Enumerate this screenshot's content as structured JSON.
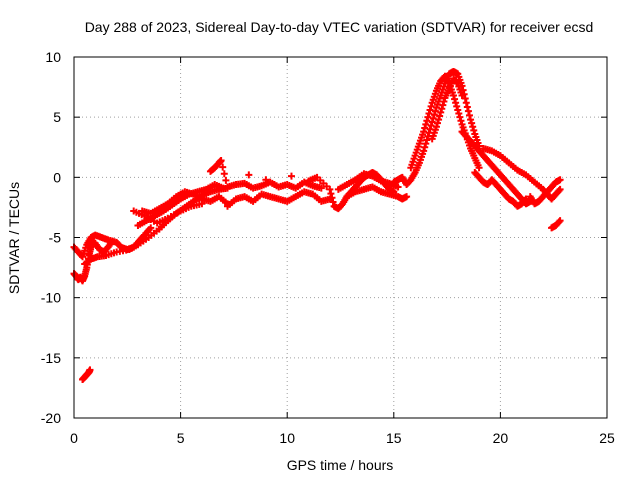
{
  "chart_data": {
    "type": "scatter",
    "title": "Day 288 of 2023, Sidereal Day-to-day VTEC variation (SDTVAR) for receiver ecsd",
    "xlabel": "GPS time / hours",
    "ylabel": "SDTVAR / TECUs",
    "xlim": [
      0,
      25
    ],
    "ylim": [
      -20,
      10
    ],
    "xticks": [
      "0",
      "5",
      "10",
      "15",
      "20",
      "25"
    ],
    "yticks": [
      "-20",
      "-15",
      "-10",
      "-5",
      "0",
      "5",
      "10"
    ],
    "grid": true,
    "marker": "plus",
    "series": [
      {
        "name": "SDTVAR",
        "color": "#ff0000",
        "points": [
          [
            0.0,
            -8.0
          ],
          [
            0.1,
            -8.2
          ],
          [
            0.2,
            -8.5
          ],
          [
            0.3,
            -8.3
          ],
          [
            0.4,
            -8.6
          ],
          [
            0.5,
            -8.2
          ],
          [
            0.6,
            -7.5
          ],
          [
            0.7,
            -6.5
          ],
          [
            0.8,
            -5.8
          ],
          [
            0.9,
            -5.4
          ],
          [
            1.0,
            -5.5
          ],
          [
            1.2,
            -6.0
          ],
          [
            1.4,
            -6.2
          ],
          [
            1.6,
            -5.8
          ],
          [
            1.8,
            -5.3
          ],
          [
            0.0,
            -5.8
          ],
          [
            0.2,
            -6.2
          ],
          [
            0.4,
            -6.6
          ],
          [
            0.6,
            -5.6
          ],
          [
            0.8,
            -5.0
          ],
          [
            1.0,
            -4.8
          ],
          [
            1.3,
            -5.0
          ],
          [
            1.6,
            -5.2
          ],
          [
            2.0,
            -5.4
          ],
          [
            2.2,
            -5.8
          ],
          [
            2.5,
            -6.0
          ],
          [
            2.8,
            -5.8
          ],
          [
            3.1,
            -5.2
          ],
          [
            3.3,
            -4.8
          ],
          [
            3.6,
            -4.2
          ],
          [
            0.5,
            -7.2
          ],
          [
            0.8,
            -6.8
          ],
          [
            1.1,
            -6.6
          ],
          [
            1.5,
            -6.5
          ],
          [
            2.0,
            -6.2
          ],
          [
            2.6,
            -6.0
          ],
          [
            3.0,
            -5.6
          ],
          [
            3.5,
            -5.0
          ],
          [
            4.0,
            -4.3
          ],
          [
            4.4,
            -3.6
          ],
          [
            4.8,
            -3.0
          ],
          [
            5.2,
            -2.5
          ],
          [
            5.6,
            -2.0
          ],
          [
            6.0,
            -1.5
          ],
          [
            6.4,
            -1.2
          ],
          [
            6.8,
            -1.0
          ],
          [
            7.2,
            -0.9
          ],
          [
            3.0,
            -4.0
          ],
          [
            3.4,
            -3.6
          ],
          [
            3.8,
            -3.2
          ],
          [
            4.2,
            -2.8
          ],
          [
            4.6,
            -2.3
          ],
          [
            5.0,
            -1.8
          ],
          [
            5.4,
            -1.4
          ],
          [
            5.8,
            -1.2
          ],
          [
            6.2,
            -1.0
          ],
          [
            6.6,
            -0.6
          ],
          [
            7.0,
            -0.9
          ],
          [
            3.2,
            -2.8
          ],
          [
            3.6,
            -3.0
          ],
          [
            4.0,
            -2.6
          ],
          [
            4.4,
            -2.2
          ],
          [
            4.8,
            -1.6
          ],
          [
            5.2,
            -1.2
          ],
          [
            5.6,
            -1.4
          ],
          [
            6.0,
            -1.8
          ],
          [
            6.4,
            -2.0
          ],
          [
            6.8,
            -1.6
          ],
          [
            7.2,
            -2.2
          ],
          [
            2.8,
            -2.8
          ],
          [
            3.3,
            -3.2
          ],
          [
            3.9,
            -3.8
          ],
          [
            4.4,
            -3.4
          ],
          [
            5.0,
            -2.8
          ],
          [
            5.5,
            -2.4
          ],
          [
            6.0,
            -2.2
          ],
          [
            6.4,
            0.5
          ],
          [
            6.6,
            0.8
          ],
          [
            6.8,
            1.2
          ],
          [
            6.9,
            1.4
          ],
          [
            7.2,
            -0.8
          ],
          [
            7.6,
            -0.6
          ],
          [
            8.0,
            -0.5
          ],
          [
            8.4,
            -0.9
          ],
          [
            8.8,
            -0.7
          ],
          [
            9.2,
            -0.4
          ],
          [
            9.6,
            -0.8
          ],
          [
            10.0,
            -0.6
          ],
          [
            10.4,
            -0.9
          ],
          [
            10.8,
            -0.4
          ],
          [
            11.2,
            -0.7
          ],
          [
            11.6,
            -0.9
          ],
          [
            7.2,
            -2.4
          ],
          [
            7.6,
            -1.8
          ],
          [
            8.0,
            -1.6
          ],
          [
            8.4,
            -2.0
          ],
          [
            8.8,
            -1.4
          ],
          [
            9.2,
            -1.6
          ],
          [
            9.6,
            -1.8
          ],
          [
            10.0,
            -2.0
          ],
          [
            10.4,
            -1.6
          ],
          [
            10.8,
            -1.2
          ],
          [
            11.2,
            -1.4
          ],
          [
            11.6,
            -2.0
          ],
          [
            12.0,
            -1.8
          ],
          [
            8.2,
            0.2
          ],
          [
            9.0,
            -0.2
          ],
          [
            10.2,
            0.1
          ],
          [
            11.0,
            -0.3
          ],
          [
            11.4,
            0.0
          ],
          [
            12.0,
            -1.0
          ],
          [
            12.2,
            -2.4
          ],
          [
            12.4,
            -2.6
          ],
          [
            12.6,
            -2.2
          ],
          [
            12.8,
            -1.6
          ],
          [
            13.0,
            -1.2
          ],
          [
            13.2,
            -0.8
          ],
          [
            13.4,
            -0.4
          ],
          [
            13.6,
            0.0
          ],
          [
            13.8,
            0.2
          ],
          [
            14.0,
            0.4
          ],
          [
            14.2,
            0.2
          ],
          [
            14.4,
            -0.2
          ],
          [
            14.6,
            -0.6
          ],
          [
            14.8,
            -1.0
          ],
          [
            15.0,
            -1.2
          ],
          [
            12.4,
            -1.0
          ],
          [
            12.8,
            -0.6
          ],
          [
            13.2,
            -0.2
          ],
          [
            13.6,
            0.3
          ],
          [
            14.0,
            0.1
          ],
          [
            14.4,
            -0.3
          ],
          [
            14.8,
            -0.5
          ],
          [
            15.2,
            -0.8
          ],
          [
            12.8,
            -1.6
          ],
          [
            13.2,
            -1.2
          ],
          [
            13.6,
            -1.0
          ],
          [
            14.0,
            -0.8
          ],
          [
            14.4,
            -1.2
          ],
          [
            14.8,
            -1.4
          ],
          [
            15.2,
            -1.6
          ],
          [
            15.4,
            -1.8
          ],
          [
            15.6,
            -1.6
          ],
          [
            15.0,
            -0.4
          ],
          [
            15.2,
            -0.2
          ],
          [
            15.4,
            0.0
          ],
          [
            15.6,
            -0.6
          ],
          [
            15.8,
            -0.2
          ],
          [
            16.0,
            0.4
          ],
          [
            16.2,
            1.2
          ],
          [
            16.4,
            2.2
          ],
          [
            16.6,
            3.4
          ],
          [
            16.8,
            4.6
          ],
          [
            17.0,
            5.8
          ],
          [
            17.2,
            6.8
          ],
          [
            17.4,
            7.8
          ],
          [
            17.6,
            8.6
          ],
          [
            17.8,
            8.8
          ],
          [
            18.0,
            8.6
          ],
          [
            18.2,
            7.6
          ],
          [
            18.4,
            6.2
          ],
          [
            18.6,
            4.8
          ],
          [
            18.8,
            3.6
          ],
          [
            19.0,
            2.6
          ],
          [
            15.8,
            0.8
          ],
          [
            16.0,
            1.8
          ],
          [
            16.2,
            2.8
          ],
          [
            16.4,
            3.8
          ],
          [
            16.6,
            5.0
          ],
          [
            16.8,
            6.2
          ],
          [
            17.0,
            7.2
          ],
          [
            17.2,
            8.0
          ],
          [
            17.4,
            8.4
          ],
          [
            17.6,
            7.8
          ],
          [
            17.8,
            6.8
          ],
          [
            18.0,
            5.6
          ],
          [
            18.2,
            4.4
          ],
          [
            18.4,
            3.4
          ],
          [
            18.6,
            2.4
          ],
          [
            18.8,
            1.6
          ],
          [
            19.0,
            0.8
          ],
          [
            16.8,
            3.2
          ],
          [
            17.0,
            4.2
          ],
          [
            17.2,
            5.4
          ],
          [
            17.4,
            6.6
          ],
          [
            17.6,
            7.4
          ],
          [
            17.8,
            8.2
          ],
          [
            18.0,
            7.8
          ],
          [
            18.2,
            6.8
          ],
          [
            18.2,
            3.8
          ],
          [
            18.4,
            3.4
          ],
          [
            18.6,
            3.0
          ],
          [
            18.8,
            2.6
          ],
          [
            19.0,
            2.2
          ],
          [
            19.2,
            1.8
          ],
          [
            19.4,
            1.4
          ],
          [
            19.6,
            1.0
          ],
          [
            19.8,
            0.6
          ],
          [
            20.0,
            0.2
          ],
          [
            20.2,
            -0.2
          ],
          [
            20.4,
            -0.6
          ],
          [
            20.6,
            -1.0
          ],
          [
            20.8,
            -1.4
          ],
          [
            21.0,
            -1.8
          ],
          [
            21.2,
            -2.2
          ],
          [
            21.4,
            -2.0
          ],
          [
            18.8,
            0.4
          ],
          [
            19.0,
            0.0
          ],
          [
            19.2,
            -0.4
          ],
          [
            19.4,
            -0.6
          ],
          [
            19.6,
            -0.2
          ],
          [
            19.8,
            -0.6
          ],
          [
            20.0,
            -1.0
          ],
          [
            20.2,
            -1.4
          ],
          [
            20.4,
            -1.8
          ],
          [
            20.6,
            -2.0
          ],
          [
            20.8,
            -2.4
          ],
          [
            21.0,
            -2.2
          ],
          [
            21.2,
            -1.8
          ],
          [
            19.2,
            2.4
          ],
          [
            19.6,
            2.2
          ],
          [
            20.0,
            1.8
          ],
          [
            20.4,
            1.2
          ],
          [
            20.8,
            0.6
          ],
          [
            21.2,
            0.2
          ],
          [
            21.6,
            -0.4
          ],
          [
            22.0,
            -1.0
          ],
          [
            22.2,
            -1.4
          ],
          [
            22.4,
            -1.8
          ],
          [
            22.6,
            -1.4
          ],
          [
            22.8,
            -1.0
          ],
          [
            21.4,
            -1.6
          ],
          [
            21.6,
            -2.2
          ],
          [
            21.8,
            -2.0
          ],
          [
            22.0,
            -1.6
          ],
          [
            22.2,
            -1.2
          ],
          [
            22.4,
            -0.8
          ],
          [
            22.6,
            -0.4
          ],
          [
            22.8,
            -0.2
          ],
          [
            22.4,
            -4.2
          ],
          [
            22.6,
            -4.0
          ],
          [
            22.8,
            -3.6
          ],
          [
            0.4,
            -16.8
          ],
          [
            0.5,
            -16.6
          ],
          [
            0.6,
            -16.4
          ],
          [
            0.7,
            -16.2
          ],
          [
            0.75,
            -16.0
          ]
        ]
      }
    ]
  }
}
